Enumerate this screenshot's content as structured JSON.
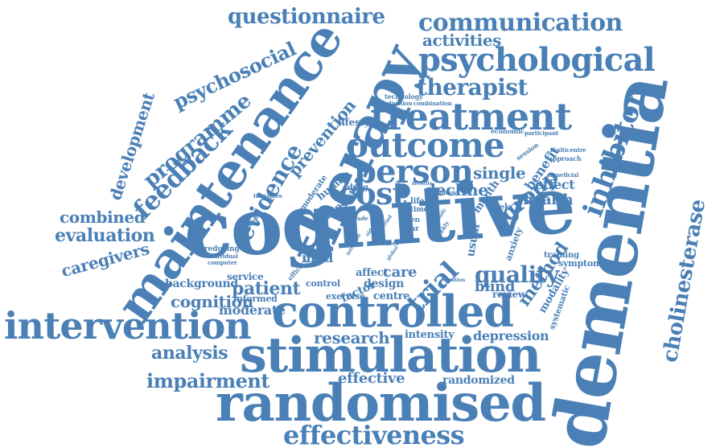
{
  "style": {
    "word_color": "#4a80b6",
    "background": "#ffffff"
  },
  "words": [
    {
      "text": "cognitive"
    },
    {
      "text": "dementia"
    },
    {
      "text": "therapy"
    },
    {
      "text": "maintenance"
    },
    {
      "text": "randomised"
    },
    {
      "text": "stimulation"
    },
    {
      "text": "controlled"
    },
    {
      "text": "intervention"
    },
    {
      "text": "treatment"
    },
    {
      "text": "psychological"
    },
    {
      "text": "outcome"
    },
    {
      "text": "person"
    },
    {
      "text": "cost"
    },
    {
      "text": "effectiveness"
    },
    {
      "text": "communication"
    },
    {
      "text": "questionnaire"
    },
    {
      "text": "activities"
    },
    {
      "text": "psychosocial"
    },
    {
      "text": "therapist"
    },
    {
      "text": "programme"
    },
    {
      "text": "feedback"
    },
    {
      "text": "evidence"
    },
    {
      "text": "development"
    },
    {
      "text": "prevention"
    },
    {
      "text": "inhibitor"
    },
    {
      "text": "cholinesterase"
    },
    {
      "text": "group"
    },
    {
      "text": "single"
    },
    {
      "text": "benefit"
    },
    {
      "text": "effect"
    },
    {
      "text": "health"
    },
    {
      "text": "decline"
    },
    {
      "text": "trial"
    },
    {
      "text": "quality"
    },
    {
      "text": "method"
    },
    {
      "text": "blind"
    },
    {
      "text": "care"
    },
    {
      "text": "patient"
    },
    {
      "text": "combined"
    },
    {
      "text": "evaluation"
    },
    {
      "text": "caregivers"
    },
    {
      "text": "cognition"
    },
    {
      "text": "moderate"
    },
    {
      "text": "background"
    },
    {
      "text": "informed"
    },
    {
      "text": "service"
    },
    {
      "text": "mild"
    },
    {
      "text": "affect"
    },
    {
      "text": "design"
    },
    {
      "text": "centre"
    },
    {
      "text": "control"
    },
    {
      "text": "factor"
    },
    {
      "text": "exercise"
    },
    {
      "text": "research"
    },
    {
      "text": "intensity"
    },
    {
      "text": "depression"
    },
    {
      "text": "analysis"
    },
    {
      "text": "impairment"
    },
    {
      "text": "effective"
    },
    {
      "text": "randomized"
    },
    {
      "text": "review"
    },
    {
      "text": "modality"
    },
    {
      "text": "systematic"
    },
    {
      "text": "symptom"
    },
    {
      "text": "usual"
    },
    {
      "text": "anxiety"
    },
    {
      "text": "training"
    },
    {
      "text": "week"
    },
    {
      "text": "month"
    },
    {
      "text": "lifestyle"
    },
    {
      "text": "drug"
    },
    {
      "text": "human"
    },
    {
      "text": "living"
    },
    {
      "text": "cluster"
    },
    {
      "text": "tomoderate"
    },
    {
      "text": "therapies"
    },
    {
      "text": "conclusion"
    },
    {
      "text": "grade"
    },
    {
      "text": "reducing"
    },
    {
      "text": "individual"
    },
    {
      "text": "computer"
    },
    {
      "text": "efficacy"
    },
    {
      "text": "result"
    },
    {
      "text": "label"
    },
    {
      "text": "open"
    },
    {
      "text": "year"
    },
    {
      "text": "time"
    },
    {
      "text": "life"
    },
    {
      "text": "weekly"
    },
    {
      "text": "session"
    },
    {
      "text": "approach"
    },
    {
      "text": "multicentre"
    },
    {
      "text": "participant"
    },
    {
      "text": "economic"
    },
    {
      "text": "beneficial"
    },
    {
      "text": "primary"
    },
    {
      "text": "severity"
    },
    {
      "text": "technology"
    },
    {
      "text": "medication"
    },
    {
      "text": "combination"
    },
    {
      "text": "duration"
    },
    {
      "text": "period"
    },
    {
      "text": "older"
    },
    {
      "text": "global"
    },
    {
      "text": "intention"
    },
    {
      "text": "study"
    }
  ]
}
